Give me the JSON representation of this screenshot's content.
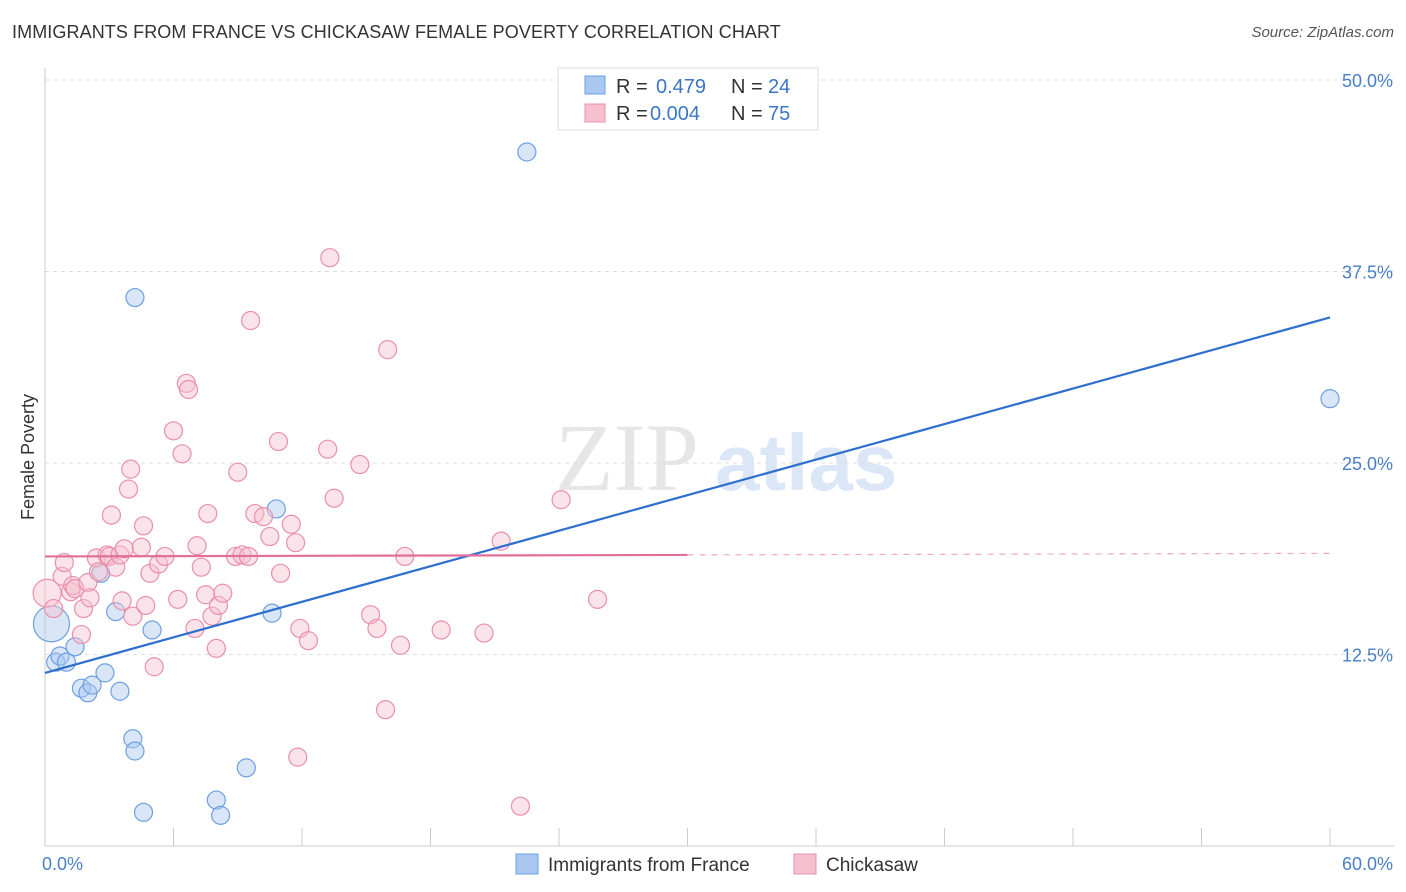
{
  "title": "IMMIGRANTS FROM FRANCE VS CHICKASAW FEMALE POVERTY CORRELATION CHART",
  "source": "Source: ZipAtlas.com",
  "watermark": {
    "zip": "ZIP",
    "atlas": "atlas"
  },
  "colors": {
    "blue_fill": "#a9c7f0",
    "blue_stroke": "#6e9fe0",
    "blue_line": "#2f6fce",
    "pink_fill": "#f7c0d0",
    "pink_stroke": "#ea8fac",
    "pink_line": "#e0709a",
    "grid": "#dddddd",
    "axis_text": "#4a7fc8"
  },
  "legend": {
    "rows": [
      {
        "r_label": "R =",
        "r_value": "0.479",
        "n_label": "N =",
        "n_value": "24"
      },
      {
        "r_label": "R =",
        "r_value": "0.004",
        "n_label": "N =",
        "n_value": "75"
      }
    ]
  },
  "chart_data": {
    "type": "scatter",
    "xlabel": "",
    "ylabel": "Female Poverty",
    "xlim": [
      0,
      60
    ],
    "ylim": [
      0,
      50
    ],
    "x_tick_labels": [
      "0.0%",
      "60.0%"
    ],
    "y_ticks": [
      12.5,
      25.0,
      37.5,
      50.0
    ],
    "y_tick_labels": [
      "12.5%",
      "25.0%",
      "37.5%",
      "50.0%"
    ],
    "grid": true,
    "legend_position": "top-center",
    "series": [
      {
        "name": "Immigrants from France",
        "color": "blue",
        "R": 0.479,
        "N": 24,
        "trend": {
          "x0": 0,
          "y0": 11.3,
          "x1": 60,
          "y1": 34.5,
          "dashed_from": null
        },
        "points": [
          [
            0.3,
            14.5,
            18
          ],
          [
            0.5,
            12.0,
            9
          ],
          [
            0.7,
            12.4,
            9
          ],
          [
            1.0,
            12.0,
            9
          ],
          [
            1.4,
            13.0,
            9
          ],
          [
            1.7,
            10.3,
            9
          ],
          [
            2.0,
            10.0,
            9
          ],
          [
            2.2,
            10.5,
            9
          ],
          [
            2.6,
            17.8,
            9
          ],
          [
            2.8,
            11.3,
            9
          ],
          [
            3.3,
            15.3,
            9
          ],
          [
            3.5,
            10.1,
            9
          ],
          [
            4.1,
            7.0,
            9
          ],
          [
            4.2,
            35.8,
            9
          ],
          [
            4.2,
            6.2,
            9
          ],
          [
            4.6,
            2.2,
            9
          ],
          [
            5.0,
            14.1,
            9
          ],
          [
            8.0,
            3.0,
            9
          ],
          [
            8.2,
            2.0,
            9
          ],
          [
            9.4,
            5.1,
            9
          ],
          [
            10.6,
            15.2,
            9
          ],
          [
            10.8,
            22.0,
            9
          ],
          [
            22.5,
            45.3,
            9
          ],
          [
            60.0,
            29.2,
            9
          ]
        ]
      },
      {
        "name": "Chickasaw",
        "color": "pink",
        "R": 0.004,
        "N": 75,
        "trend": {
          "x0": 0,
          "y0": 18.9,
          "x1": 60,
          "y1": 19.1,
          "dashed_from": 30
        },
        "points": [
          [
            0.1,
            16.5,
            14
          ],
          [
            0.4,
            15.5,
            9
          ],
          [
            0.8,
            17.6,
            9
          ],
          [
            0.9,
            18.5,
            9
          ],
          [
            1.2,
            16.6,
            9
          ],
          [
            1.3,
            17.0,
            9
          ],
          [
            1.4,
            16.8,
            9
          ],
          [
            1.7,
            13.8,
            9
          ],
          [
            1.8,
            15.5,
            9
          ],
          [
            2.0,
            17.2,
            9
          ],
          [
            2.1,
            16.2,
            9
          ],
          [
            2.4,
            18.8,
            9
          ],
          [
            2.5,
            17.9,
            9
          ],
          [
            2.9,
            19.0,
            9
          ],
          [
            3.0,
            18.9,
            9
          ],
          [
            3.1,
            21.6,
            9
          ],
          [
            3.3,
            18.2,
            9
          ],
          [
            3.5,
            19.0,
            9
          ],
          [
            3.6,
            16.0,
            9
          ],
          [
            3.7,
            19.4,
            9
          ],
          [
            3.9,
            23.3,
            9
          ],
          [
            4.0,
            24.6,
            9
          ],
          [
            4.1,
            15.0,
            9
          ],
          [
            4.5,
            19.5,
            9
          ],
          [
            4.6,
            20.9,
            9
          ],
          [
            4.7,
            15.7,
            9
          ],
          [
            4.9,
            17.8,
            9
          ],
          [
            5.1,
            11.7,
            9
          ],
          [
            5.3,
            18.4,
            9
          ],
          [
            5.6,
            18.9,
            9
          ],
          [
            6.0,
            27.1,
            9
          ],
          [
            6.2,
            16.1,
            9
          ],
          [
            6.4,
            25.6,
            9
          ],
          [
            6.6,
            30.2,
            9
          ],
          [
            6.7,
            29.8,
            9
          ],
          [
            7.0,
            14.2,
            9
          ],
          [
            7.1,
            19.6,
            9
          ],
          [
            7.3,
            18.2,
            9
          ],
          [
            7.5,
            16.4,
            9
          ],
          [
            7.6,
            21.7,
            9
          ],
          [
            7.8,
            15.0,
            9
          ],
          [
            8.0,
            12.9,
            9
          ],
          [
            8.1,
            15.7,
            9
          ],
          [
            8.3,
            16.5,
            9
          ],
          [
            8.9,
            18.9,
            9
          ],
          [
            9.0,
            24.4,
            9
          ],
          [
            9.2,
            19.0,
            9
          ],
          [
            9.5,
            18.9,
            9
          ],
          [
            9.6,
            34.3,
            9
          ],
          [
            9.8,
            21.7,
            9
          ],
          [
            10.2,
            21.5,
            9
          ],
          [
            10.5,
            20.2,
            9
          ],
          [
            10.9,
            26.4,
            9
          ],
          [
            11.0,
            17.8,
            9
          ],
          [
            11.5,
            21.0,
            9
          ],
          [
            11.7,
            19.8,
            9
          ],
          [
            11.8,
            5.8,
            9
          ],
          [
            11.9,
            14.2,
            9
          ],
          [
            12.3,
            13.4,
            9
          ],
          [
            13.2,
            25.9,
            9
          ],
          [
            13.3,
            38.4,
            9
          ],
          [
            13.5,
            22.7,
            9
          ],
          [
            14.7,
            24.9,
            9
          ],
          [
            15.2,
            15.1,
            9
          ],
          [
            15.5,
            14.2,
            9
          ],
          [
            15.9,
            8.9,
            9
          ],
          [
            16.0,
            32.4,
            9
          ],
          [
            16.6,
            13.1,
            9
          ],
          [
            16.8,
            18.9,
            9
          ],
          [
            18.5,
            14.1,
            9
          ],
          [
            20.5,
            13.9,
            9
          ],
          [
            21.3,
            19.9,
            9
          ],
          [
            22.2,
            2.6,
            9
          ],
          [
            24.1,
            22.6,
            9
          ],
          [
            25.8,
            16.1,
            9
          ]
        ]
      }
    ]
  },
  "bottom_legend": {
    "items": [
      "Immigrants from France",
      "Chickasaw"
    ]
  }
}
